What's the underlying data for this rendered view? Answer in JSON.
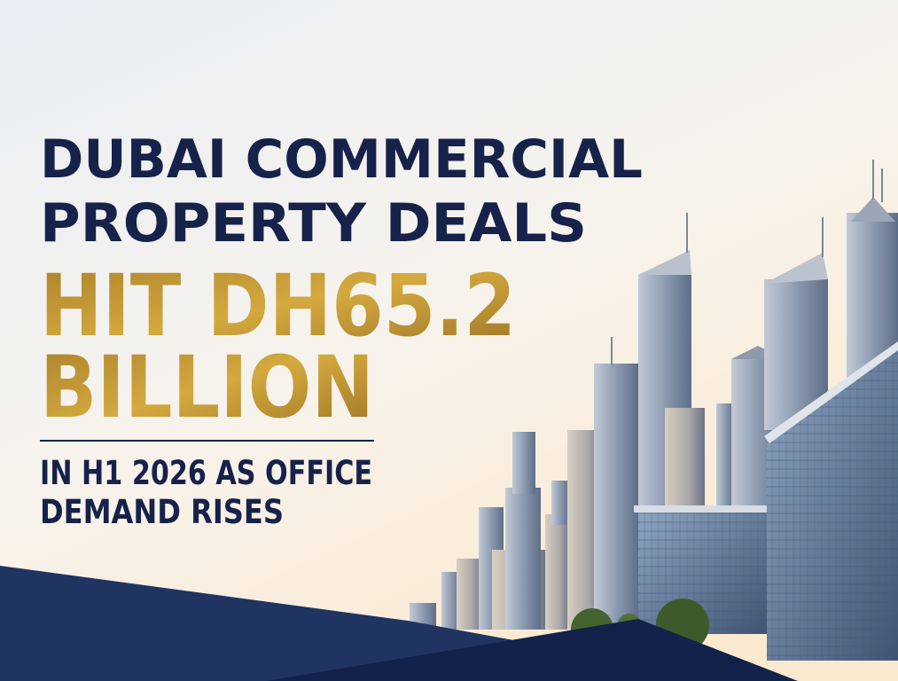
{
  "headline": {
    "lines": [
      "DUBAI COMMERCIAL",
      "PROPERTY DEALS"
    ],
    "highlight": [
      "HIT DH65.2",
      "BILLION"
    ]
  },
  "subheadline": {
    "lines": [
      "IN H1 2026 AS OFFICE",
      "DEMAND RISES"
    ]
  }
}
